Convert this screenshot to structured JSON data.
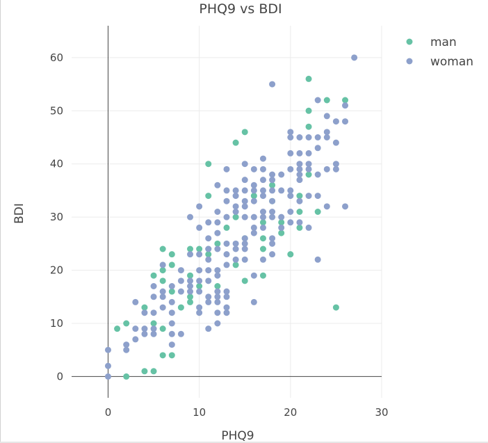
{
  "chart_data": {
    "type": "scatter",
    "title": "PHQ9 vs BDI",
    "xlabel": "PHQ9",
    "ylabel": "BDI",
    "xlim": [
      -4,
      30
    ],
    "ylim": [
      -4,
      66
    ],
    "x_ticks": [
      0,
      10,
      20,
      30
    ],
    "y_ticks": [
      0,
      10,
      20,
      30,
      40,
      50,
      60
    ],
    "x_tick_labels": [
      "0",
      "10",
      "20",
      "30"
    ],
    "y_tick_labels": [
      "0",
      "10",
      "20",
      "30",
      "40",
      "50",
      "60"
    ],
    "grid": true,
    "legend_position": "top-right",
    "series": [
      {
        "name": "man",
        "color": "#66c2a5",
        "points": [
          [
            1,
            9
          ],
          [
            2,
            10
          ],
          [
            2,
            0
          ],
          [
            4,
            1
          ],
          [
            4,
            13
          ],
          [
            5,
            1
          ],
          [
            5,
            10
          ],
          [
            5,
            19
          ],
          [
            6,
            24
          ],
          [
            6,
            20
          ],
          [
            6,
            18
          ],
          [
            6,
            9
          ],
          [
            6,
            4
          ],
          [
            7,
            23
          ],
          [
            7,
            21
          ],
          [
            7,
            16
          ],
          [
            7,
            4
          ],
          [
            8,
            13
          ],
          [
            9,
            24
          ],
          [
            9,
            19
          ],
          [
            9,
            15
          ],
          [
            9,
            14
          ],
          [
            10,
            24
          ],
          [
            10,
            17
          ],
          [
            11,
            40
          ],
          [
            11,
            34
          ],
          [
            11,
            24
          ],
          [
            11,
            23
          ],
          [
            12,
            25
          ],
          [
            12,
            17
          ],
          [
            13,
            28
          ],
          [
            14,
            44
          ],
          [
            14,
            30
          ],
          [
            14,
            21
          ],
          [
            15,
            46
          ],
          [
            15,
            26
          ],
          [
            15,
            18
          ],
          [
            16,
            34
          ],
          [
            17,
            29
          ],
          [
            17,
            26
          ],
          [
            17,
            24
          ],
          [
            17,
            19
          ],
          [
            18,
            36
          ],
          [
            18,
            33
          ],
          [
            19,
            29
          ],
          [
            19,
            27
          ],
          [
            20,
            23
          ],
          [
            21,
            34
          ],
          [
            21,
            31
          ],
          [
            21,
            28
          ],
          [
            22,
            56
          ],
          [
            22,
            50
          ],
          [
            22,
            47
          ],
          [
            22,
            38
          ],
          [
            23,
            31
          ],
          [
            24,
            52
          ],
          [
            25,
            13
          ],
          [
            26,
            52
          ]
        ]
      },
      {
        "name": "woman",
        "color": "#8da0cb",
        "points": [
          [
            0,
            5
          ],
          [
            0,
            2
          ],
          [
            0,
            0
          ],
          [
            2,
            6
          ],
          [
            2,
            5
          ],
          [
            3,
            14
          ],
          [
            3,
            9
          ],
          [
            3,
            7
          ],
          [
            4,
            12
          ],
          [
            4,
            9
          ],
          [
            4,
            8
          ],
          [
            5,
            17
          ],
          [
            5,
            15
          ],
          [
            5,
            12
          ],
          [
            5,
            9
          ],
          [
            5,
            8
          ],
          [
            6,
            21
          ],
          [
            6,
            16
          ],
          [
            6,
            15
          ],
          [
            6,
            13
          ],
          [
            7,
            17
          ],
          [
            7,
            14
          ],
          [
            7,
            12
          ],
          [
            7,
            10
          ],
          [
            7,
            8
          ],
          [
            7,
            6
          ],
          [
            8,
            20
          ],
          [
            8,
            18
          ],
          [
            8,
            16
          ],
          [
            8,
            8
          ],
          [
            9,
            30
          ],
          [
            9,
            23
          ],
          [
            9,
            18
          ],
          [
            9,
            17
          ],
          [
            9,
            16
          ],
          [
            10,
            32
          ],
          [
            10,
            28
          ],
          [
            10,
            23
          ],
          [
            10,
            20
          ],
          [
            10,
            18
          ],
          [
            10,
            16
          ],
          [
            10,
            13
          ],
          [
            10,
            12
          ],
          [
            11,
            29
          ],
          [
            11,
            26
          ],
          [
            11,
            24
          ],
          [
            11,
            22
          ],
          [
            11,
            20
          ],
          [
            11,
            18
          ],
          [
            11,
            15
          ],
          [
            11,
            14
          ],
          [
            11,
            9
          ],
          [
            12,
            36
          ],
          [
            12,
            31
          ],
          [
            12,
            29
          ],
          [
            12,
            27
          ],
          [
            12,
            24
          ],
          [
            12,
            20
          ],
          [
            12,
            19
          ],
          [
            12,
            16
          ],
          [
            12,
            15
          ],
          [
            12,
            14
          ],
          [
            12,
            12
          ],
          [
            12,
            10
          ],
          [
            13,
            39
          ],
          [
            13,
            35
          ],
          [
            13,
            33
          ],
          [
            13,
            30
          ],
          [
            13,
            25
          ],
          [
            13,
            23
          ],
          [
            13,
            21
          ],
          [
            13,
            16
          ],
          [
            13,
            15
          ],
          [
            13,
            13
          ],
          [
            13,
            12
          ],
          [
            14,
            35
          ],
          [
            14,
            34
          ],
          [
            14,
            32
          ],
          [
            14,
            31
          ],
          [
            14,
            25
          ],
          [
            14,
            24
          ],
          [
            14,
            22
          ],
          [
            15,
            40
          ],
          [
            15,
            37
          ],
          [
            15,
            35
          ],
          [
            15,
            33
          ],
          [
            15,
            32
          ],
          [
            15,
            30
          ],
          [
            15,
            26
          ],
          [
            15,
            25
          ],
          [
            15,
            24
          ],
          [
            15,
            22
          ],
          [
            16,
            39
          ],
          [
            16,
            36
          ],
          [
            16,
            35
          ],
          [
            16,
            33
          ],
          [
            16,
            30
          ],
          [
            16,
            28
          ],
          [
            16,
            27
          ],
          [
            16,
            19
          ],
          [
            16,
            14
          ],
          [
            17,
            41
          ],
          [
            17,
            39
          ],
          [
            17,
            37
          ],
          [
            17,
            35
          ],
          [
            17,
            34
          ],
          [
            17,
            31
          ],
          [
            17,
            30
          ],
          [
            17,
            28
          ],
          [
            17,
            22
          ],
          [
            18,
            55
          ],
          [
            18,
            38
          ],
          [
            18,
            37
          ],
          [
            18,
            35
          ],
          [
            18,
            33
          ],
          [
            18,
            31
          ],
          [
            18,
            30
          ],
          [
            18,
            26
          ],
          [
            18,
            25
          ],
          [
            18,
            23
          ],
          [
            19,
            38
          ],
          [
            19,
            35
          ],
          [
            19,
            30
          ],
          [
            19,
            28
          ],
          [
            20,
            46
          ],
          [
            20,
            45
          ],
          [
            20,
            42
          ],
          [
            20,
            39
          ],
          [
            20,
            35
          ],
          [
            20,
            34
          ],
          [
            20,
            31
          ],
          [
            20,
            29
          ],
          [
            21,
            45
          ],
          [
            21,
            42
          ],
          [
            21,
            40
          ],
          [
            21,
            39
          ],
          [
            21,
            38
          ],
          [
            21,
            37
          ],
          [
            21,
            33
          ],
          [
            21,
            29
          ],
          [
            22,
            45
          ],
          [
            22,
            42
          ],
          [
            22,
            40
          ],
          [
            22,
            39
          ],
          [
            22,
            34
          ],
          [
            22,
            28
          ],
          [
            23,
            52
          ],
          [
            23,
            45
          ],
          [
            23,
            43
          ],
          [
            23,
            38
          ],
          [
            23,
            34
          ],
          [
            23,
            22
          ],
          [
            24,
            49
          ],
          [
            24,
            46
          ],
          [
            24,
            45
          ],
          [
            24,
            39
          ],
          [
            24,
            32
          ],
          [
            25,
            48
          ],
          [
            25,
            44
          ],
          [
            25,
            40
          ],
          [
            25,
            39
          ],
          [
            26,
            51
          ],
          [
            26,
            48
          ],
          [
            26,
            32
          ],
          [
            27,
            60
          ]
        ]
      }
    ]
  }
}
